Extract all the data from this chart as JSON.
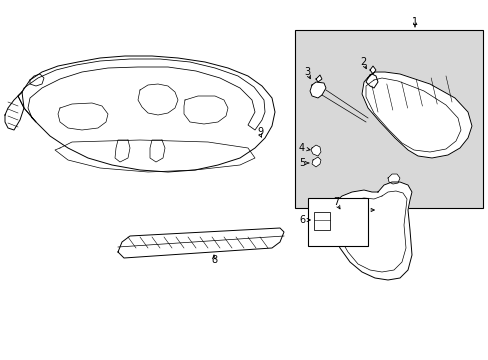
{
  "background_color": "#ffffff",
  "line_color": "#000000",
  "box_fill": "#d8d8d8",
  "fig_width": 4.89,
  "fig_height": 3.6,
  "dpi": 100
}
